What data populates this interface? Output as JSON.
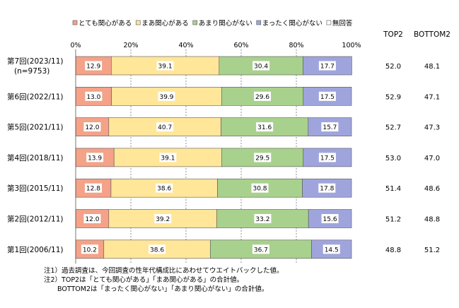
{
  "chart_data": {
    "type": "bar",
    "stacked": true,
    "orientation": "horizontal",
    "title": "",
    "xlabel": "",
    "ylabel": "",
    "xlim": [
      0,
      100
    ],
    "x_ticks": [
      "0%",
      "20%",
      "40%",
      "60%",
      "80%",
      "100%"
    ],
    "grid": true,
    "legend_position": "top",
    "categories": [
      [
        "第7回(2023/11)",
        "(n=9753)"
      ],
      [
        "第6回(2022/11)"
      ],
      [
        "第5回(2021/11)"
      ],
      [
        "第4回(2018/11)"
      ],
      [
        "第3回(2015/11)"
      ],
      [
        "第2回(2012/11)"
      ],
      [
        "第1回(2006/11)"
      ]
    ],
    "series": [
      {
        "name": "とても関心がある",
        "color": "#f4a288",
        "values": [
          12.9,
          13.0,
          12.0,
          13.9,
          12.8,
          12.0,
          10.2
        ],
        "labels": [
          "12.9",
          "13.0",
          "12.0",
          "13.9",
          "12.8",
          "12.0",
          "10.2"
        ]
      },
      {
        "name": "まあ関心がある",
        "color": "#ffe699",
        "values": [
          39.1,
          39.9,
          40.7,
          39.1,
          38.6,
          39.2,
          38.6
        ],
        "labels": [
          "39.1",
          "39.9",
          "40.7",
          "39.1",
          "38.6",
          "39.2",
          "38.6"
        ]
      },
      {
        "name": "あまり関心がない",
        "color": "#a9d18e",
        "values": [
          30.4,
          29.6,
          31.6,
          29.5,
          30.8,
          33.2,
          36.7
        ],
        "labels": [
          "30.4",
          "29.6",
          "31.6",
          "29.5",
          "30.8",
          "33.2",
          "36.7"
        ]
      },
      {
        "name": "まったく関心がない",
        "color": "#9fa5dc",
        "values": [
          17.7,
          17.5,
          15.7,
          17.5,
          17.8,
          15.6,
          14.5
        ],
        "labels": [
          "17.7",
          "17.5",
          "15.7",
          "17.5",
          "17.8",
          "15.6",
          "14.5"
        ]
      },
      {
        "name": "無回答",
        "color": "#ffffff",
        "values": [
          0,
          0,
          0,
          0,
          0,
          0,
          0
        ],
        "labels": []
      }
    ],
    "side_columns": [
      {
        "header": "TOP2",
        "values": [
          "52.0",
          "52.9",
          "52.7",
          "53.0",
          "51.4",
          "51.2",
          "48.8"
        ]
      },
      {
        "header": "BOTTOM2",
        "values": [
          "48.1",
          "47.1",
          "47.3",
          "47.0",
          "48.6",
          "48.8",
          "51.2"
        ]
      }
    ]
  },
  "notes": [
    "注1）過去調査は、今回調査の性年代構成比にあわせてウエイトバックした値。",
    "注2）TOP2は「とても関心がある」「まあ関心がある」の合計値。",
    "　　BOTTOM2は「まったく関心がない」「あまり関心がない」の合計値。"
  ]
}
